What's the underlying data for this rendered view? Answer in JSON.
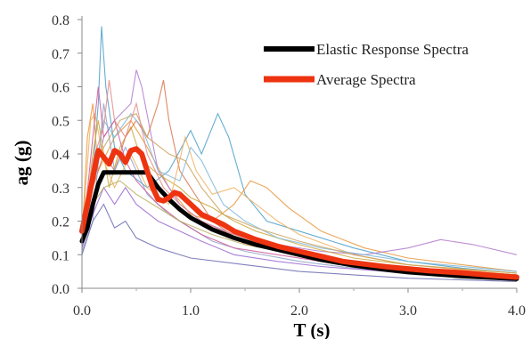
{
  "chart_data": {
    "type": "line",
    "xlabel": "T (s)",
    "ylabel": "ag (g)",
    "xlim": [
      0,
      4.0
    ],
    "ylim": [
      0,
      0.8
    ],
    "xticks": [
      "0.0",
      "1.0",
      "2.0",
      "3.0",
      "4.0"
    ],
    "yticks": [
      "0.0",
      "0.1",
      "0.2",
      "0.3",
      "0.4",
      "0.5",
      "0.6",
      "0.7",
      "0.8"
    ],
    "grid": false,
    "legend_position": "top-right",
    "series": [
      {
        "name": "Elastic Response Spectra",
        "color": "#000000",
        "role": "main",
        "points": [
          [
            0,
            0.14
          ],
          [
            0.05,
            0.18
          ],
          [
            0.1,
            0.25
          ],
          [
            0.15,
            0.31
          ],
          [
            0.2,
            0.345
          ],
          [
            0.3,
            0.345
          ],
          [
            0.4,
            0.345
          ],
          [
            0.5,
            0.345
          ],
          [
            0.6,
            0.345
          ],
          [
            0.7,
            0.3
          ],
          [
            0.8,
            0.265
          ],
          [
            0.9,
            0.235
          ],
          [
            1.0,
            0.21
          ],
          [
            1.2,
            0.175
          ],
          [
            1.4,
            0.15
          ],
          [
            1.6,
            0.13
          ],
          [
            1.8,
            0.115
          ],
          [
            2.0,
            0.1
          ],
          [
            2.2,
            0.085
          ],
          [
            2.5,
            0.068
          ],
          [
            2.8,
            0.055
          ],
          [
            3.0,
            0.048
          ],
          [
            3.5,
            0.036
          ],
          [
            4.0,
            0.028
          ]
        ]
      },
      {
        "name": "Average Spectra",
        "color": "#ee3311",
        "role": "main",
        "points": [
          [
            0,
            0.17
          ],
          [
            0.05,
            0.25
          ],
          [
            0.1,
            0.33
          ],
          [
            0.15,
            0.41
          ],
          [
            0.2,
            0.39
          ],
          [
            0.25,
            0.37
          ],
          [
            0.3,
            0.41
          ],
          [
            0.35,
            0.4
          ],
          [
            0.4,
            0.375
          ],
          [
            0.45,
            0.41
          ],
          [
            0.5,
            0.415
          ],
          [
            0.55,
            0.4
          ],
          [
            0.6,
            0.35
          ],
          [
            0.65,
            0.3
          ],
          [
            0.7,
            0.265
          ],
          [
            0.75,
            0.26
          ],
          [
            0.8,
            0.27
          ],
          [
            0.85,
            0.285
          ],
          [
            0.9,
            0.28
          ],
          [
            1.0,
            0.25
          ],
          [
            1.1,
            0.22
          ],
          [
            1.2,
            0.205
          ],
          [
            1.3,
            0.19
          ],
          [
            1.4,
            0.17
          ],
          [
            1.6,
            0.145
          ],
          [
            1.8,
            0.125
          ],
          [
            2.0,
            0.11
          ],
          [
            2.2,
            0.095
          ],
          [
            2.4,
            0.08
          ],
          [
            2.6,
            0.072
          ],
          [
            2.8,
            0.064
          ],
          [
            3.0,
            0.058
          ],
          [
            3.2,
            0.052
          ],
          [
            3.5,
            0.046
          ],
          [
            3.8,
            0.038
          ],
          [
            4.0,
            0.033
          ]
        ]
      },
      {
        "color": "#4a9fc8",
        "role": "record",
        "points": [
          [
            0,
            0.14
          ],
          [
            0.1,
            0.35
          ],
          [
            0.15,
            0.55
          ],
          [
            0.18,
            0.78
          ],
          [
            0.22,
            0.6
          ],
          [
            0.3,
            0.42
          ],
          [
            0.4,
            0.35
          ],
          [
            0.6,
            0.3
          ],
          [
            0.8,
            0.35
          ],
          [
            1.0,
            0.47
          ],
          [
            1.1,
            0.4
          ],
          [
            1.2,
            0.48
          ],
          [
            1.25,
            0.52
          ],
          [
            1.35,
            0.45
          ],
          [
            1.5,
            0.28
          ],
          [
            1.7,
            0.2
          ],
          [
            2.0,
            0.17
          ],
          [
            2.5,
            0.12
          ],
          [
            3.0,
            0.08
          ],
          [
            3.5,
            0.06
          ],
          [
            4.0,
            0.045
          ]
        ]
      },
      {
        "color": "#e8963a",
        "role": "record",
        "points": [
          [
            0,
            0.15
          ],
          [
            0.05,
            0.45
          ],
          [
            0.1,
            0.55
          ],
          [
            0.15,
            0.35
          ],
          [
            0.3,
            0.45
          ],
          [
            0.45,
            0.5
          ],
          [
            0.6,
            0.42
          ],
          [
            0.8,
            0.3
          ],
          [
            1.0,
            0.22
          ],
          [
            1.2,
            0.2
          ],
          [
            1.4,
            0.25
          ],
          [
            1.55,
            0.32
          ],
          [
            1.7,
            0.3
          ],
          [
            1.9,
            0.24
          ],
          [
            2.2,
            0.17
          ],
          [
            2.6,
            0.12
          ],
          [
            3.0,
            0.09
          ],
          [
            3.5,
            0.07
          ],
          [
            4.0,
            0.05
          ]
        ]
      },
      {
        "color": "#b07acb",
        "role": "record",
        "points": [
          [
            0,
            0.12
          ],
          [
            0.1,
            0.3
          ],
          [
            0.2,
            0.45
          ],
          [
            0.3,
            0.5
          ],
          [
            0.45,
            0.55
          ],
          [
            0.5,
            0.65
          ],
          [
            0.55,
            0.6
          ],
          [
            0.7,
            0.35
          ],
          [
            0.9,
            0.25
          ],
          [
            1.1,
            0.2
          ],
          [
            1.4,
            0.16
          ],
          [
            1.8,
            0.13
          ],
          [
            2.2,
            0.11
          ],
          [
            2.6,
            0.1
          ],
          [
            3.0,
            0.12
          ],
          [
            3.3,
            0.145
          ],
          [
            3.6,
            0.13
          ],
          [
            4.0,
            0.1
          ]
        ]
      },
      {
        "color": "#c9a73a",
        "role": "record",
        "points": [
          [
            0,
            0.13
          ],
          [
            0.1,
            0.4
          ],
          [
            0.15,
            0.5
          ],
          [
            0.25,
            0.3
          ],
          [
            0.35,
            0.42
          ],
          [
            0.45,
            0.48
          ],
          [
            0.55,
            0.38
          ],
          [
            0.7,
            0.34
          ],
          [
            0.9,
            0.3
          ],
          [
            1.0,
            0.27
          ],
          [
            1.2,
            0.24
          ],
          [
            1.4,
            0.2
          ],
          [
            1.6,
            0.17
          ],
          [
            2.0,
            0.13
          ],
          [
            2.5,
            0.09
          ],
          [
            3.0,
            0.07
          ],
          [
            4.0,
            0.045
          ]
        ]
      },
      {
        "color": "#d9744a",
        "role": "record",
        "points": [
          [
            0,
            0.14
          ],
          [
            0.1,
            0.3
          ],
          [
            0.2,
            0.4
          ],
          [
            0.3,
            0.35
          ],
          [
            0.4,
            0.45
          ],
          [
            0.5,
            0.5
          ],
          [
            0.6,
            0.45
          ],
          [
            0.7,
            0.55
          ],
          [
            0.75,
            0.62
          ],
          [
            0.8,
            0.5
          ],
          [
            0.9,
            0.35
          ],
          [
            1.0,
            0.3
          ],
          [
            1.2,
            0.2
          ],
          [
            1.5,
            0.13
          ],
          [
            2.0,
            0.1
          ],
          [
            2.5,
            0.08
          ],
          [
            3.0,
            0.06
          ],
          [
            4.0,
            0.04
          ]
        ]
      },
      {
        "color": "#8fa0c8",
        "role": "record",
        "points": [
          [
            0,
            0.11
          ],
          [
            0.1,
            0.2
          ],
          [
            0.2,
            0.55
          ],
          [
            0.3,
            0.35
          ],
          [
            0.4,
            0.42
          ],
          [
            0.5,
            0.35
          ],
          [
            0.6,
            0.28
          ],
          [
            0.8,
            0.22
          ],
          [
            1.0,
            0.18
          ],
          [
            1.2,
            0.14
          ],
          [
            1.5,
            0.11
          ],
          [
            2.0,
            0.08
          ],
          [
            2.5,
            0.06
          ],
          [
            3.0,
            0.045
          ],
          [
            4.0,
            0.03
          ]
        ]
      },
      {
        "color": "#6a6ab0",
        "role": "record",
        "points": [
          [
            0,
            0.1
          ],
          [
            0.1,
            0.2
          ],
          [
            0.2,
            0.25
          ],
          [
            0.3,
            0.18
          ],
          [
            0.4,
            0.2
          ],
          [
            0.5,
            0.15
          ],
          [
            0.7,
            0.12
          ],
          [
            1.0,
            0.09
          ],
          [
            1.5,
            0.07
          ],
          [
            2.0,
            0.05
          ],
          [
            2.5,
            0.04
          ],
          [
            3.0,
            0.03
          ],
          [
            4.0,
            0.02
          ]
        ]
      },
      {
        "color": "#f0b060",
        "role": "record",
        "points": [
          [
            0,
            0.15
          ],
          [
            0.08,
            0.5
          ],
          [
            0.12,
            0.52
          ],
          [
            0.2,
            0.38
          ],
          [
            0.3,
            0.3
          ],
          [
            0.45,
            0.4
          ],
          [
            0.6,
            0.3
          ],
          [
            0.8,
            0.25
          ],
          [
            0.95,
            0.45
          ],
          [
            1.05,
            0.35
          ],
          [
            1.2,
            0.28
          ],
          [
            1.4,
            0.3
          ],
          [
            1.6,
            0.25
          ],
          [
            1.8,
            0.2
          ],
          [
            2.0,
            0.16
          ],
          [
            2.5,
            0.1
          ],
          [
            3.0,
            0.07
          ],
          [
            4.0,
            0.04
          ]
        ]
      },
      {
        "color": "#d05a9a",
        "role": "record",
        "points": [
          [
            0,
            0.13
          ],
          [
            0.1,
            0.45
          ],
          [
            0.15,
            0.6
          ],
          [
            0.2,
            0.45
          ],
          [
            0.3,
            0.5
          ],
          [
            0.4,
            0.38
          ],
          [
            0.5,
            0.32
          ],
          [
            0.7,
            0.25
          ],
          [
            0.9,
            0.2
          ],
          [
            1.1,
            0.16
          ],
          [
            1.4,
            0.12
          ],
          [
            1.8,
            0.1
          ],
          [
            2.2,
            0.08
          ],
          [
            2.8,
            0.06
          ],
          [
            3.4,
            0.05
          ],
          [
            4.0,
            0.035
          ]
        ]
      },
      {
        "color": "#7fb8d8",
        "role": "record",
        "points": [
          [
            0,
            0.14
          ],
          [
            0.1,
            0.3
          ],
          [
            0.2,
            0.5
          ],
          [
            0.3,
            0.45
          ],
          [
            0.45,
            0.52
          ],
          [
            0.55,
            0.48
          ],
          [
            0.7,
            0.35
          ],
          [
            0.9,
            0.32
          ],
          [
            1.0,
            0.42
          ],
          [
            1.1,
            0.38
          ],
          [
            1.3,
            0.25
          ],
          [
            1.5,
            0.2
          ],
          [
            1.8,
            0.15
          ],
          [
            2.2,
            0.12
          ],
          [
            2.6,
            0.1
          ],
          [
            3.0,
            0.08
          ],
          [
            4.0,
            0.05
          ]
        ]
      },
      {
        "color": "#caa15a",
        "role": "record",
        "points": [
          [
            0,
            0.12
          ],
          [
            0.1,
            0.35
          ],
          [
            0.2,
            0.42
          ],
          [
            0.35,
            0.5
          ],
          [
            0.5,
            0.52
          ],
          [
            0.6,
            0.45
          ],
          [
            0.8,
            0.4
          ],
          [
            0.95,
            0.38
          ],
          [
            1.1,
            0.3
          ],
          [
            1.3,
            0.22
          ],
          [
            1.6,
            0.18
          ],
          [
            2.0,
            0.14
          ],
          [
            2.5,
            0.1
          ],
          [
            3.0,
            0.07
          ],
          [
            4.0,
            0.045
          ]
        ]
      },
      {
        "color": "#9a6ad0",
        "role": "record",
        "points": [
          [
            0,
            0.12
          ],
          [
            0.1,
            0.22
          ],
          [
            0.2,
            0.3
          ],
          [
            0.3,
            0.25
          ],
          [
            0.4,
            0.3
          ],
          [
            0.5,
            0.25
          ],
          [
            0.7,
            0.2
          ],
          [
            0.9,
            0.17
          ],
          [
            1.1,
            0.14
          ],
          [
            1.4,
            0.1
          ],
          [
            1.8,
            0.08
          ],
          [
            2.2,
            0.065
          ],
          [
            2.8,
            0.05
          ],
          [
            3.5,
            0.04
          ],
          [
            4.0,
            0.035
          ]
        ]
      },
      {
        "color": "#e58a8a",
        "role": "record",
        "points": [
          [
            0,
            0.14
          ],
          [
            0.1,
            0.38
          ],
          [
            0.2,
            0.48
          ],
          [
            0.25,
            0.62
          ],
          [
            0.3,
            0.5
          ],
          [
            0.4,
            0.45
          ],
          [
            0.5,
            0.55
          ],
          [
            0.6,
            0.4
          ],
          [
            0.75,
            0.3
          ],
          [
            0.9,
            0.25
          ],
          [
            1.1,
            0.2
          ],
          [
            1.3,
            0.17
          ],
          [
            1.6,
            0.14
          ],
          [
            2.0,
            0.11
          ],
          [
            2.5,
            0.08
          ],
          [
            3.0,
            0.06
          ],
          [
            4.0,
            0.04
          ]
        ]
      },
      {
        "color": "#b8b060",
        "role": "record",
        "points": [
          [
            0,
            0.13
          ],
          [
            0.1,
            0.25
          ],
          [
            0.2,
            0.3
          ],
          [
            0.35,
            0.32
          ],
          [
            0.5,
            0.28
          ],
          [
            0.7,
            0.24
          ],
          [
            0.9,
            0.2
          ],
          [
            1.2,
            0.16
          ],
          [
            1.5,
            0.13
          ],
          [
            2.0,
            0.1
          ],
          [
            2.5,
            0.075
          ],
          [
            3.0,
            0.06
          ],
          [
            4.0,
            0.04
          ]
        ]
      }
    ]
  }
}
